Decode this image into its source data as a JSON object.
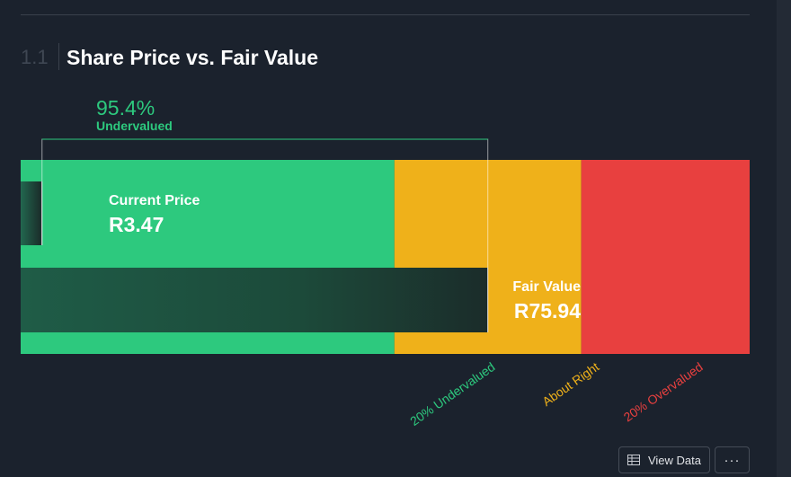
{
  "section": {
    "number": "1.1",
    "title": "Share Price vs. Fair Value"
  },
  "valuation": {
    "percent": "95.4%",
    "status": "Undervalued"
  },
  "chart_data": {
    "type": "bar",
    "title": "Share Price vs. Fair Value",
    "currency": "R",
    "current_price": 3.47,
    "fair_value": 75.94,
    "xlim": [
      0,
      118.5
    ],
    "zones": [
      {
        "name": "20% Undervalued",
        "from": 0,
        "to": 60.75,
        "color": "#2dc97e"
      },
      {
        "name": "About Right",
        "from": 60.75,
        "to": 91.13,
        "color": "#efb11a"
      },
      {
        "name": "20% Overvalued",
        "from": 91.13,
        "to": 118.5,
        "color": "#e8403f"
      }
    ],
    "bars": [
      {
        "name": "Current Price",
        "label": "Current Price",
        "value_text": "R3.47",
        "value": 3.47
      },
      {
        "name": "Fair Value",
        "label": "Fair Value",
        "value_text": "R75.94",
        "value": 75.94
      }
    ],
    "zone_labels": [
      "20% Undervalued",
      "About Right",
      "20% Overvalued"
    ]
  },
  "buttons": {
    "view_data": "View Data",
    "more": "···"
  },
  "icons": {
    "view_data": "table-icon"
  }
}
